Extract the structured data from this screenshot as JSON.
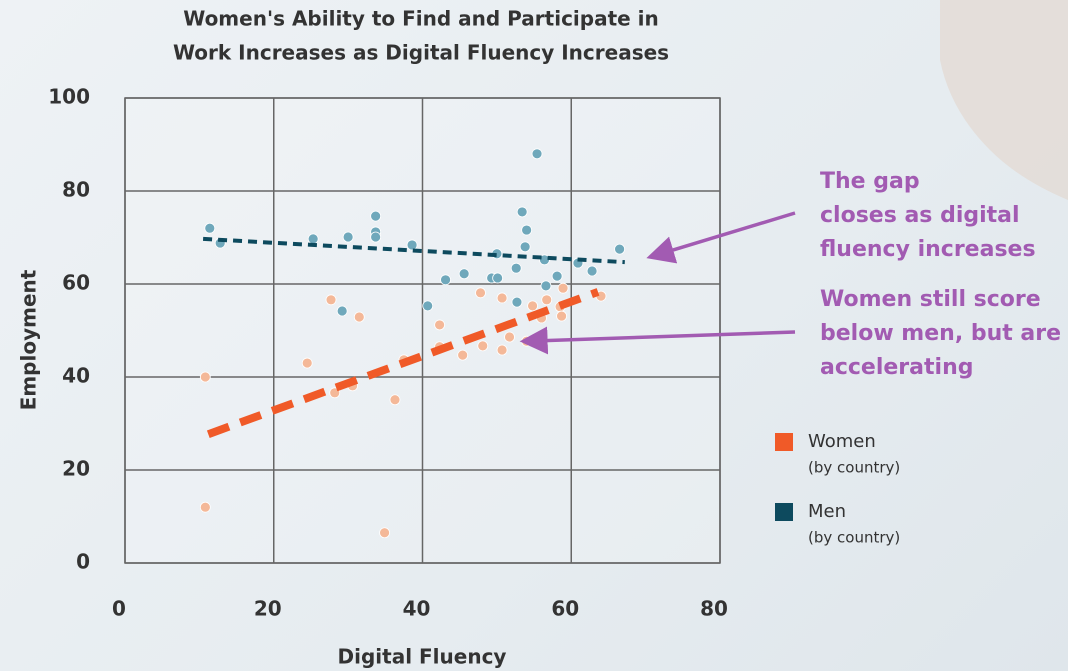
{
  "chart_data": {
    "type": "scatter",
    "title": [
      "Women's Ability to Find and Participate in",
      "Work Increases as Digital Fluency Increases"
    ],
    "x_label": "Digital Fluency",
    "y_label": "Employment",
    "xlim": [
      0,
      80
    ],
    "ylim": [
      0,
      100
    ],
    "xticks": [
      0,
      20,
      40,
      60,
      80
    ],
    "yticks": [
      0,
      20,
      40,
      60,
      80,
      100
    ],
    "grid": true,
    "series": [
      {
        "name": "Women",
        "note": "(by country)",
        "color": "#f4b898",
        "legend_color": "#f05a28",
        "x": [
          10.8,
          10.8,
          24.5,
          27.7,
          28.2,
          30.6,
          31.5,
          34.9,
          36.3,
          37.5,
          42.3,
          42.3,
          45.4,
          47.8,
          48.1,
          50.7,
          50.7,
          51.7,
          54.0,
          54.8,
          56.0,
          56.7,
          58.5,
          58.7,
          58.9,
          64.0
        ],
        "values": [
          40.0,
          12.0,
          43.0,
          56.6,
          36.6,
          38.1,
          52.9,
          6.5,
          35.1,
          43.7,
          51.2,
          46.5,
          44.7,
          58.1,
          46.7,
          57.0,
          45.8,
          48.6,
          47.7,
          55.3,
          52.7,
          56.6,
          55.1,
          53.1,
          59.1,
          57.4
        ]
      },
      {
        "name": "Men",
        "note": "(by country)",
        "color": "#6fa8bb",
        "legend_color": "#0d4a5e",
        "x": [
          11.4,
          12.8,
          25.3,
          30.0,
          29.2,
          33.7,
          33.7,
          33.7,
          38.6,
          40.7,
          43.1,
          45.6,
          50.0,
          49.3,
          50.1,
          52.6,
          52.7,
          53.4,
          54.0,
          53.8,
          55.4,
          56.6,
          56.4,
          58.1,
          60.9,
          62.8,
          66.5
        ],
        "values": [
          72.0,
          68.8,
          69.7,
          70.1,
          54.2,
          74.6,
          71.2,
          70.1,
          68.4,
          55.3,
          60.9,
          62.2,
          66.5,
          61.3,
          61.3,
          63.4,
          56.1,
          75.5,
          71.6,
          68.0,
          88.0,
          59.6,
          65.2,
          61.7,
          64.5,
          62.8,
          67.5
        ]
      }
    ],
    "trend_lines": [
      {
        "color": "#f05a28",
        "x": [
          11.2,
          63.6
        ],
        "values": [
          27.7,
          58.3
        ]
      },
      {
        "color": "#0d4a5e",
        "x": [
          10.5,
          67.2
        ],
        "values": [
          69.7,
          64.7
        ]
      }
    ],
    "annotations": [
      {
        "lines": [
          "The gap",
          "closes as digital",
          "fluency increases"
        ],
        "color": "#a25bb2",
        "arrow_to": [
          71,
          66
        ]
      },
      {
        "lines": [
          "Women still score",
          "below men, but are",
          "accelerating"
        ],
        "color": "#a25bb2",
        "arrow_to": [
          54,
          47.7
        ]
      }
    ]
  }
}
